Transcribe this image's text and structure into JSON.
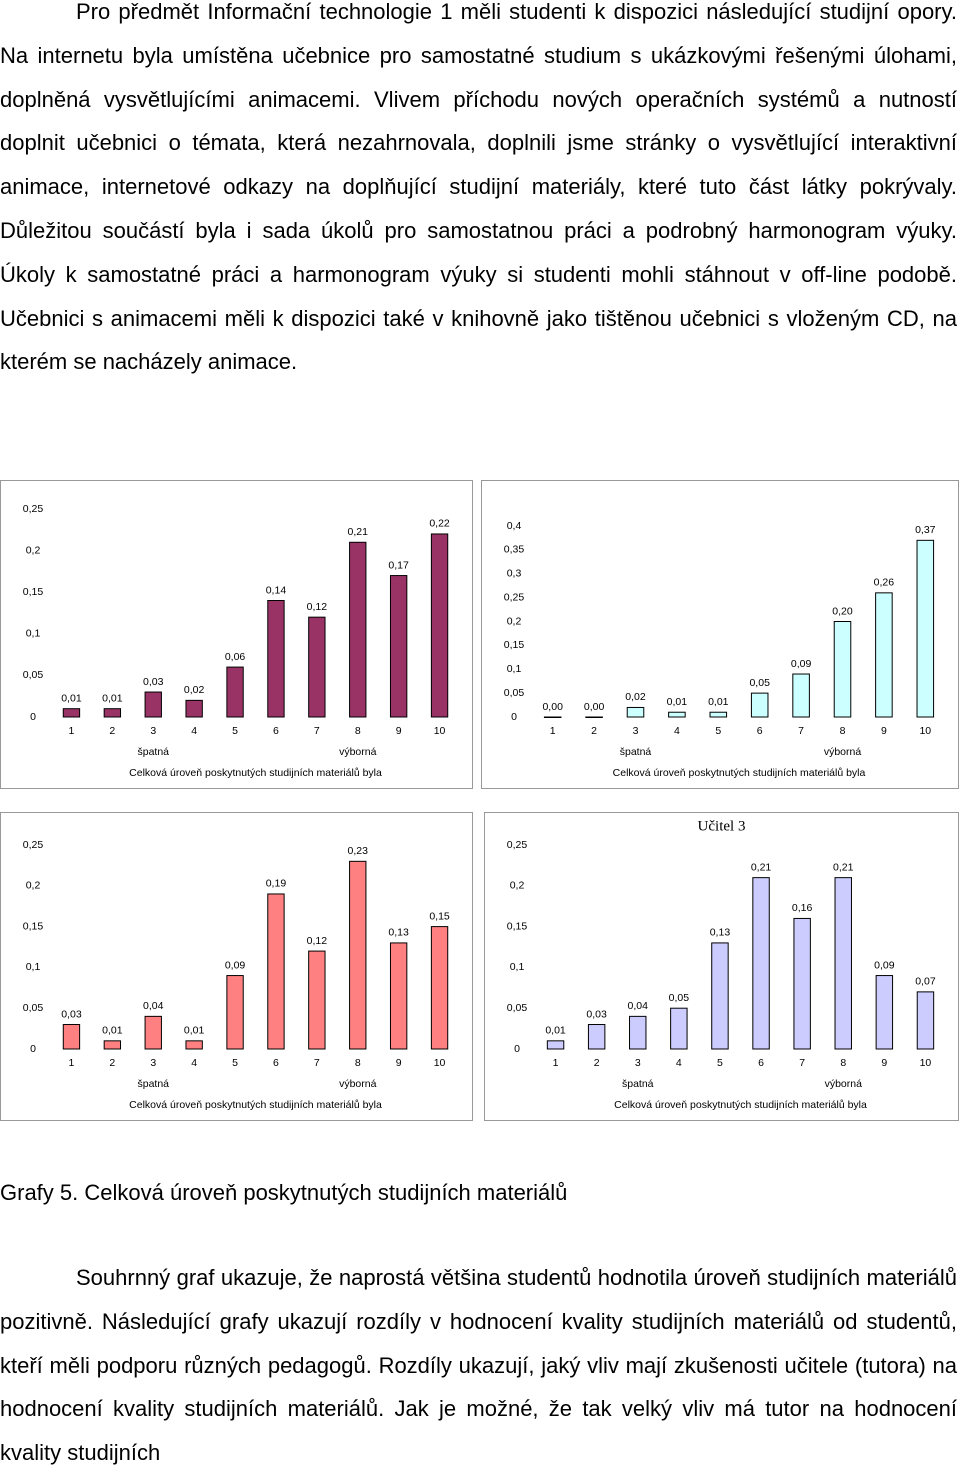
{
  "paragraphs": [
    "Pro předmět Informační technologie 1 měli studenti k dispozici následující studijní opory. Na internetu byla umístěna učebnice pro samostatné studium s ukázkovými řešenými úlohami, doplněná vysvětlujícími animacemi. Vlivem příchodu nových operačních systémů a nutností doplnit učebnici o témata, která nezahrnovala, doplnili jsme stránky o vysvětlující interaktivní animace, internetové odkazy na doplňující studijní materiály, které tuto část látky pokrývaly. Důležitou součástí byla i sada úkolů pro samostatnou práci a podrobný harmonogram výuky. Úkoly k samostatné práci a harmonogram výuky si studenti mohli stáhnout v off-line podobě. Učebnici s animacemi měli k dispozici také v knihovně jako tištěnou učebnici s vloženým CD, na kterém se nacházely animace.",
    "Souhrnný graf ukazuje, že naprostá většina studentů hodnotila úroveň studijních materiálů pozitivně. Následující grafy ukazují rozdíly v hodnocení kvality studijních materiálů od studentů, kteří měli podporu různých pedagogů. Rozdíly ukazují, jaký vliv mají zkušenosti učitele (tutora) na hodnocení kvality studijních materiálů. Jak je možné, že tak velký vliv má tutor na hodnocení kvality studijních"
  ],
  "caption": "Grafy 5. Celková úroveň poskytnutých studijních materiálů",
  "chart_data": [
    {
      "type": "bar",
      "categories": [
        "1",
        "2",
        "3",
        "4",
        "5",
        "6",
        "7",
        "8",
        "9",
        "10"
      ],
      "values": [
        0.01,
        0.01,
        0.03,
        0.02,
        0.06,
        0.14,
        0.12,
        0.21,
        0.17,
        0.22
      ],
      "value_labels": [
        "0,01",
        "0,01",
        "0,03",
        "0,02",
        "0,06",
        "0,14",
        "0,12",
        "0,21",
        "0,17",
        "0,22"
      ],
      "color": "#993366",
      "ylim": [
        0,
        0.25
      ],
      "yticks": [
        0,
        {
          "value": 0.05,
          "label": "0,05"
        },
        {
          "value": 0.1,
          "label": "0,1"
        },
        {
          "value": 0.15,
          "label": "0,15"
        },
        {
          "value": 0.2,
          "label": "0,2"
        },
        {
          "value": 0.25,
          "label": "0,25"
        }
      ],
      "x_label_left": "špatná",
      "x_label_right": "výborná",
      "xlabel": "Celková úroveň poskytnutých studijních materiálů byla"
    },
    {
      "type": "bar",
      "categories": [
        "1",
        "2",
        "3",
        "4",
        "5",
        "6",
        "7",
        "8",
        "9",
        "10"
      ],
      "values": [
        0,
        0,
        0.02,
        0.01,
        0.01,
        0.05,
        0.09,
        0.2,
        0.26,
        0.37
      ],
      "value_labels": [
        "0,00",
        "0,00",
        "0,02",
        "0,01",
        "0,01",
        "0,05",
        "0,09",
        "0,20",
        "0,26",
        "0,37"
      ],
      "color": "#CCFFFF",
      "ylim": [
        0,
        0.4
      ],
      "yticks": [
        0,
        {
          "value": 0.05,
          "label": "0,05"
        },
        {
          "value": 0.1,
          "label": "0,1"
        },
        {
          "value": 0.15,
          "label": "0,15"
        },
        {
          "value": 0.2,
          "label": "0,2"
        },
        {
          "value": 0.25,
          "label": "0,25"
        },
        {
          "value": 0.3,
          "label": "0,3"
        },
        {
          "value": 0.35,
          "label": "0,35"
        },
        {
          "value": 0.4,
          "label": "0,4"
        }
      ],
      "x_label_left": "špatná",
      "x_label_right": "výborná",
      "xlabel": "Celková úroveň poskytnutých studijních materiálů byla"
    },
    {
      "type": "bar",
      "categories": [
        "1",
        "2",
        "3",
        "4",
        "5",
        "6",
        "7",
        "8",
        "9",
        "10"
      ],
      "values": [
        0.03,
        0.01,
        0.04,
        0.01,
        0.09,
        0.19,
        0.12,
        0.23,
        0.13,
        0.15
      ],
      "value_labels": [
        "0,03",
        "0,01",
        "0,04",
        "0,01",
        "0,09",
        "0,19",
        "0,12",
        "0,23",
        "0,13",
        "0,15"
      ],
      "color": "#FF8080",
      "ylim": [
        0,
        0.25
      ],
      "yticks": [
        0,
        {
          "value": 0.05,
          "label": "0,05"
        },
        {
          "value": 0.1,
          "label": "0,1"
        },
        {
          "value": 0.15,
          "label": "0,15"
        },
        {
          "value": 0.2,
          "label": "0,2"
        },
        {
          "value": 0.25,
          "label": "0,25"
        }
      ],
      "x_label_left": "špatná",
      "x_label_right": "výborná",
      "xlabel": "Celková úroveň poskytnutých studijních materiálů byla"
    },
    {
      "type": "bar",
      "title": "Učitel 3",
      "categories": [
        "1",
        "2",
        "3",
        "4",
        "5",
        "6",
        "7",
        "8",
        "9",
        "10"
      ],
      "values": [
        0.01,
        0.03,
        0.04,
        0.05,
        0.13,
        0.21,
        0.16,
        0.21,
        0.09,
        0.07
      ],
      "value_labels": [
        "0,01",
        "0,03",
        "0,04",
        "0,05",
        "0,13",
        "0,21",
        "0,16",
        "0,21",
        "0,09",
        "0,07"
      ],
      "color": "#CCCCFF",
      "ylim": [
        0,
        0.25
      ],
      "yticks": [
        0,
        {
          "value": 0.05,
          "label": "0,05"
        },
        {
          "value": 0.1,
          "label": "0,1"
        },
        {
          "value": 0.15,
          "label": "0,15"
        },
        {
          "value": 0.2,
          "label": "0,2"
        },
        {
          "value": 0.25,
          "label": "0,25"
        }
      ],
      "x_label_left": "špatná",
      "x_label_right": "výborná",
      "xlabel": "Celková úroveň poskytnutých studijních materiálů byla"
    }
  ]
}
